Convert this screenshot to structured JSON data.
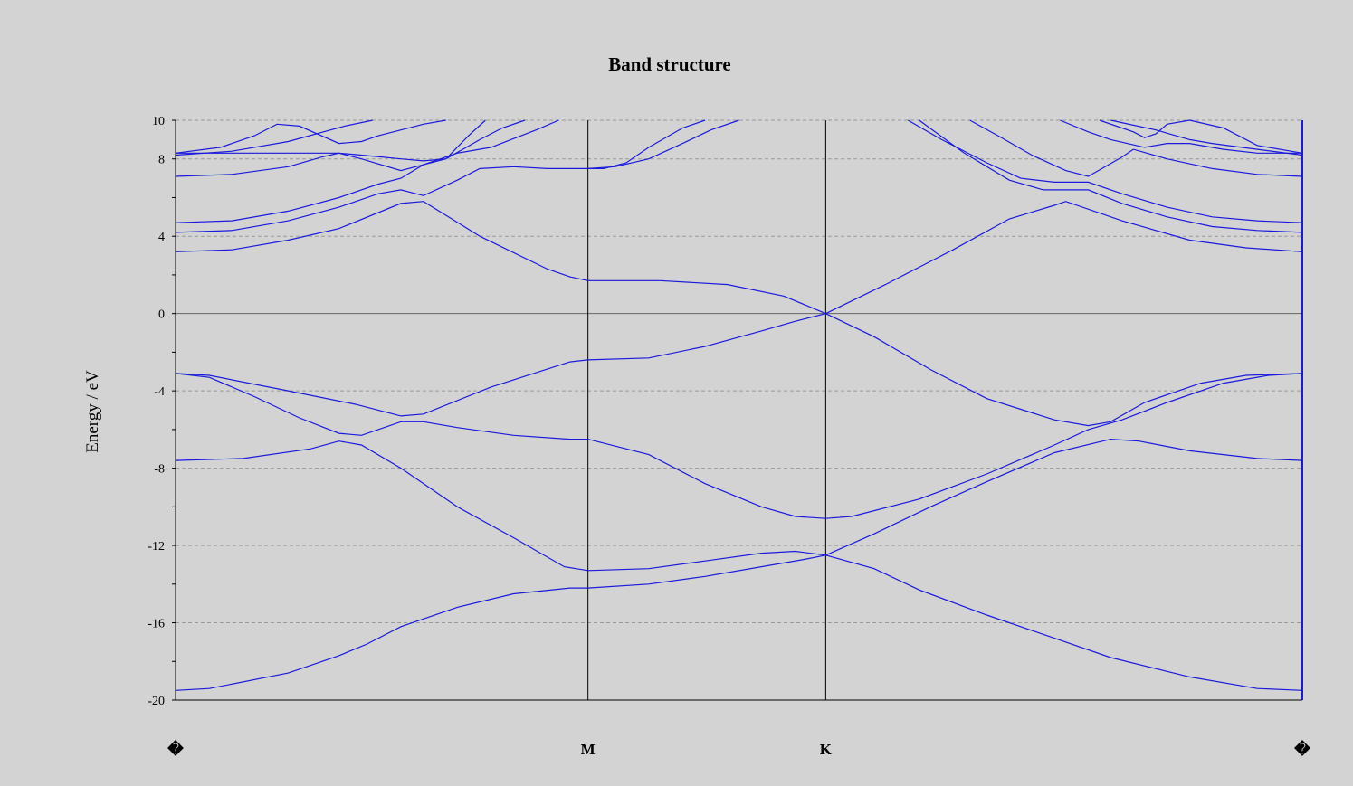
{
  "chart_data": {
    "type": "line",
    "title": "Band structure",
    "xlabel": "",
    "ylabel": "Energy / eV",
    "ylim": [
      -20,
      10
    ],
    "yticks": [
      "10",
      "8",
      "4",
      "0",
      "-4",
      "-8",
      "-12",
      "-16",
      "-20"
    ],
    "ytick_values": [
      10,
      8,
      4,
      0,
      -4,
      -8,
      -12,
      -16,
      -20
    ],
    "grid": true,
    "kpoint_labels": [
      "�",
      "M",
      "K",
      "�"
    ],
    "kpoint_positions": [
      0,
      0.366,
      0.577,
      1.0
    ],
    "series": [
      {
        "x": [
          0,
          0.03,
          0.1,
          0.145,
          0.17,
          0.2,
          0.25,
          0.3,
          0.35,
          0.366
        ],
        "y": [
          -19.5,
          -19.4,
          -18.6,
          -17.7,
          -17.1,
          -16.2,
          -15.2,
          -14.5,
          -14.2,
          -14.2
        ]
      },
      {
        "x": [
          0.366,
          0.42,
          0.47,
          0.52,
          0.56,
          0.577
        ],
        "y": [
          -14.2,
          -14.0,
          -13.6,
          -13.1,
          -12.7,
          -12.5
        ]
      },
      {
        "x": [
          0.577,
          0.62,
          0.66,
          0.72,
          0.78,
          0.83,
          0.9,
          0.96,
          1.0
        ],
        "y": [
          -12.5,
          -13.2,
          -14.3,
          -15.6,
          -16.8,
          -17.8,
          -18.8,
          -19.4,
          -19.5
        ]
      },
      {
        "x": [
          0,
          0.06,
          0.12,
          0.145,
          0.165,
          0.2,
          0.25,
          0.3,
          0.345,
          0.366
        ],
        "y": [
          -7.6,
          -7.5,
          -7.0,
          -6.6,
          -6.8,
          -8.0,
          -10.0,
          -11.6,
          -13.1,
          -13.3
        ]
      },
      {
        "x": [
          0.366,
          0.42,
          0.47,
          0.52,
          0.55,
          0.577
        ],
        "y": [
          -13.3,
          -13.2,
          -12.8,
          -12.4,
          -12.3,
          -12.5
        ]
      },
      {
        "x": [
          0.577,
          0.62,
          0.67,
          0.72,
          0.78,
          0.83,
          0.855,
          0.9,
          0.96,
          1.0
        ],
        "y": [
          -12.5,
          -11.4,
          -10.0,
          -8.7,
          -7.2,
          -6.5,
          -6.6,
          -7.1,
          -7.5,
          -7.6
        ]
      },
      {
        "x": [
          0,
          0.03,
          0.07,
          0.11,
          0.145,
          0.165,
          0.2,
          0.22,
          0.25,
          0.3,
          0.35,
          0.366
        ],
        "y": [
          -3.1,
          -3.3,
          -4.3,
          -5.4,
          -6.2,
          -6.3,
          -5.6,
          -5.6,
          -5.9,
          -6.3,
          -6.5,
          -6.5
        ]
      },
      {
        "x": [
          0.366,
          0.42,
          0.47,
          0.52,
          0.55,
          0.577
        ],
        "y": [
          -6.5,
          -7.3,
          -8.8,
          -10.0,
          -10.5,
          -10.6
        ]
      },
      {
        "x": [
          0.577,
          0.6,
          0.66,
          0.72,
          0.78,
          0.81,
          0.84,
          0.88,
          0.93,
          0.97,
          1.0
        ],
        "y": [
          -10.6,
          -10.5,
          -9.6,
          -8.3,
          -6.8,
          -6.0,
          -5.5,
          -4.6,
          -3.6,
          -3.2,
          -3.1
        ]
      },
      {
        "x": [
          0,
          0.03,
          0.1,
          0.16,
          0.2,
          0.22,
          0.28,
          0.35,
          0.366
        ],
        "y": [
          -3.1,
          -3.2,
          -4.0,
          -4.7,
          -5.3,
          -5.2,
          -3.8,
          -2.5,
          -2.4
        ]
      },
      {
        "x": [
          0.366,
          0.42,
          0.47,
          0.52,
          0.55,
          0.577
        ],
        "y": [
          -2.4,
          -2.3,
          -1.7,
          -0.9,
          -0.4,
          0.0
        ]
      },
      {
        "x": [
          0.577,
          0.62,
          0.67,
          0.72,
          0.78,
          0.81,
          0.83,
          0.86,
          0.91,
          0.95,
          1.0
        ],
        "y": [
          0.0,
          -1.2,
          -2.9,
          -4.4,
          -5.5,
          -5.8,
          -5.6,
          -4.6,
          -3.6,
          -3.2,
          -3.1
        ]
      },
      {
        "x": [
          0,
          0.05,
          0.1,
          0.145,
          0.2,
          0.22,
          0.27,
          0.33,
          0.35,
          0.366
        ],
        "y": [
          3.2,
          3.3,
          3.8,
          4.4,
          5.7,
          5.8,
          4.0,
          2.3,
          1.9,
          1.7
        ]
      },
      {
        "x": [
          0.366,
          0.43,
          0.49,
          0.54,
          0.577
        ],
        "y": [
          1.7,
          1.7,
          1.5,
          0.9,
          0.0
        ]
      },
      {
        "x": [
          0.577,
          0.63,
          0.69,
          0.74,
          0.78,
          0.79,
          0.84,
          0.9,
          0.95,
          1.0
        ],
        "y": [
          0.0,
          1.5,
          3.3,
          4.9,
          5.6,
          5.8,
          4.8,
          3.8,
          3.4,
          3.2
        ]
      },
      {
        "x": [
          0,
          0.05,
          0.1,
          0.145,
          0.18,
          0.2,
          0.22,
          0.25,
          0.27,
          0.3,
          0.33,
          0.35,
          0.366
        ],
        "y": [
          4.2,
          4.3,
          4.8,
          5.5,
          6.2,
          6.4,
          6.1,
          6.9,
          7.5,
          7.6,
          7.5,
          7.5,
          7.5
        ]
      },
      {
        "x": [
          0.366,
          0.39,
          0.42,
          0.45,
          0.475,
          0.5
        ],
        "y": [
          7.5,
          7.6,
          8.0,
          8.8,
          9.5,
          10.0
        ]
      },
      {
        "x": [
          0.66,
          0.7,
          0.74,
          0.77,
          0.79,
          0.81,
          0.84,
          0.88,
          0.92,
          0.96,
          1.0
        ],
        "y": [
          10.0,
          8.3,
          6.9,
          6.4,
          6.4,
          6.4,
          5.7,
          5.0,
          4.5,
          4.3,
          4.2
        ]
      },
      {
        "x": [
          0,
          0.05,
          0.1,
          0.145,
          0.18,
          0.2,
          0.22,
          0.25,
          0.28,
          0.32,
          0.34
        ],
        "y": [
          4.7,
          4.8,
          5.3,
          6.0,
          6.7,
          7.0,
          7.7,
          8.3,
          8.6,
          9.5,
          10.0
        ]
      },
      {
        "x": [
          0.65,
          0.68,
          0.72,
          0.75,
          0.78,
          0.81,
          0.84,
          0.88,
          0.92,
          0.96,
          1.0
        ],
        "y": [
          10.0,
          9.0,
          7.8,
          7.0,
          6.8,
          6.8,
          6.2,
          5.5,
          5.0,
          4.8,
          4.7
        ]
      },
      {
        "x": [
          0,
          0.05,
          0.1,
          0.13,
          0.145,
          0.165,
          0.2,
          0.22,
          0.24,
          0.27,
          0.29,
          0.31
        ],
        "y": [
          7.1,
          7.2,
          7.6,
          8.1,
          8.3,
          8.0,
          7.4,
          7.7,
          8.0,
          9.0,
          9.6,
          10.0
        ]
      },
      {
        "x": [
          0.705,
          0.73,
          0.76,
          0.79,
          0.81,
          0.84,
          0.85,
          0.88,
          0.92,
          0.96,
          1.0
        ],
        "y": [
          10.0,
          9.2,
          8.2,
          7.4,
          7.1,
          8.1,
          8.5,
          8.0,
          7.5,
          7.2,
          7.1
        ]
      },
      {
        "x": [
          0,
          0.05,
          0.1,
          0.145,
          0.165,
          0.2,
          0.22,
          0.24,
          0.26,
          0.275
        ],
        "y": [
          8.3,
          8.3,
          8.3,
          8.3,
          8.2,
          8.0,
          7.9,
          8.0,
          9.2,
          10.0
        ]
      },
      {
        "x": [
          0.785,
          0.81,
          0.83,
          0.86,
          0.88,
          0.9,
          0.93,
          0.96,
          1.0
        ],
        "y": [
          10.0,
          9.4,
          9.0,
          8.6,
          8.8,
          8.8,
          8.5,
          8.3,
          8.3
        ]
      },
      {
        "x": [
          0,
          0.04,
          0.07,
          0.09,
          0.11,
          0.145,
          0.165,
          0.18,
          0.22,
          0.24
        ],
        "y": [
          8.3,
          8.6,
          9.2,
          9.8,
          9.7,
          8.8,
          8.9,
          9.2,
          9.8,
          10.0
        ]
      },
      {
        "x": [
          0.82,
          0.85,
          0.86,
          0.87,
          0.88,
          0.9,
          0.93,
          0.96,
          1.0
        ],
        "y": [
          10.0,
          9.4,
          9.1,
          9.3,
          9.8,
          10.0,
          9.6,
          8.7,
          8.3
        ]
      },
      {
        "x": [
          0,
          0.05,
          0.1,
          0.15,
          0.175
        ],
        "y": [
          8.2,
          8.4,
          8.9,
          9.7,
          10.0
        ]
      },
      {
        "x": [
          0.83,
          0.87,
          0.9,
          0.92,
          0.96,
          1.0
        ],
        "y": [
          10.0,
          9.5,
          9.0,
          8.8,
          8.5,
          8.2
        ]
      },
      {
        "x": [
          0.366,
          0.38,
          0.4,
          0.42,
          0.45,
          0.47
        ],
        "y": [
          7.5,
          7.5,
          7.8,
          8.6,
          9.6,
          10.0
        ]
      }
    ]
  }
}
